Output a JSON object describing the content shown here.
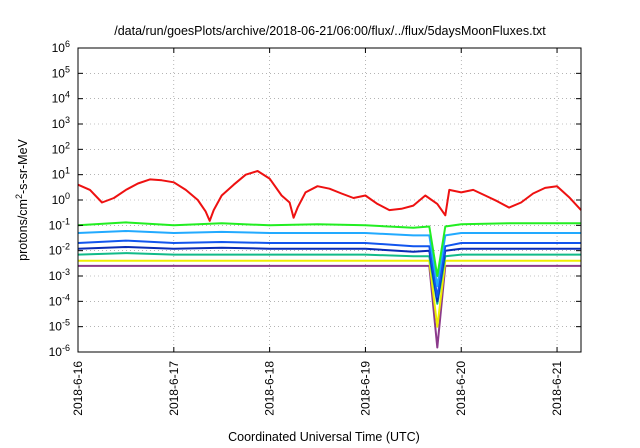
{
  "chart_data": {
    "type": "line",
    "title": "/data/run/goesPlots/archive/2018-06-21/06:00/flux/../flux/5daysMoonFluxes.txt",
    "xlabel": "Coordinated Universal Time (UTC)",
    "ylabel": {
      "base": "protons/cm",
      "sup": "2",
      "rest": "-s-sr-MeV"
    },
    "ylog": true,
    "ylim": [
      1e-06,
      1000000.0
    ],
    "yticks": [
      {
        "value": 1e-06,
        "base": "10",
        "exp": "-6"
      },
      {
        "value": 1e-05,
        "base": "10",
        "exp": "-5"
      },
      {
        "value": 0.0001,
        "base": "10",
        "exp": "-4"
      },
      {
        "value": 0.001,
        "base": "10",
        "exp": "-3"
      },
      {
        "value": 0.01,
        "base": "10",
        "exp": "-2"
      },
      {
        "value": 0.1,
        "base": "10",
        "exp": "-1"
      },
      {
        "value": 1,
        "base": "10",
        "exp": "0"
      },
      {
        "value": 10,
        "base": "10",
        "exp": "1"
      },
      {
        "value": 100,
        "base": "10",
        "exp": "2"
      },
      {
        "value": 1000,
        "base": "10",
        "exp": "3"
      },
      {
        "value": 10000,
        "base": "10",
        "exp": "4"
      },
      {
        "value": 100000,
        "base": "10",
        "exp": "5"
      },
      {
        "value": 1000000,
        "base": "10",
        "exp": "6"
      }
    ],
    "xlim": [
      "2018-06-16T00:00",
      "2018-06-21T06:00"
    ],
    "xticks": [
      {
        "value": "2018-06-16T00:00",
        "label": "2018-6-16"
      },
      {
        "value": "2018-06-17T00:00",
        "label": "2018-6-17"
      },
      {
        "value": "2018-06-18T00:00",
        "label": "2018-6-18"
      },
      {
        "value": "2018-06-19T00:00",
        "label": "2018-6-19"
      },
      {
        "value": "2018-06-20T00:00",
        "label": "2018-6-20"
      },
      {
        "value": "2018-06-21T00:00",
        "label": "2018-6-21"
      }
    ],
    "grid": true,
    "legend": "none",
    "series": [
      {
        "color": "#ee1111",
        "x": [
          "2018-06-16T00:00",
          "2018-06-16T03:00",
          "2018-06-16T06:00",
          "2018-06-16T09:00",
          "2018-06-16T12:00",
          "2018-06-16T15:00",
          "2018-06-16T18:00",
          "2018-06-16T21:00",
          "2018-06-17T00:00",
          "2018-06-17T03:00",
          "2018-06-17T06:00",
          "2018-06-17T08:00",
          "2018-06-17T09:00",
          "2018-06-17T10:00",
          "2018-06-17T12:00",
          "2018-06-17T15:00",
          "2018-06-17T18:00",
          "2018-06-17T21:00",
          "2018-06-18T00:00",
          "2018-06-18T03:00",
          "2018-06-18T05:00",
          "2018-06-18T06:00",
          "2018-06-18T07:00",
          "2018-06-18T09:00",
          "2018-06-18T12:00",
          "2018-06-18T15:00",
          "2018-06-18T18:00",
          "2018-06-18T21:00",
          "2018-06-19T00:00",
          "2018-06-19T03:00",
          "2018-06-19T06:00",
          "2018-06-19T09:00",
          "2018-06-19T12:00",
          "2018-06-19T15:00",
          "2018-06-19T18:00",
          "2018-06-19T20:00",
          "2018-06-19T21:00",
          "2018-06-20T00:00",
          "2018-06-20T03:00",
          "2018-06-20T06:00",
          "2018-06-20T09:00",
          "2018-06-20T12:00",
          "2018-06-20T15:00",
          "2018-06-20T18:00",
          "2018-06-20T21:00",
          "2018-06-21T00:00",
          "2018-06-21T03:00",
          "2018-06-21T06:00"
        ],
        "y": [
          4,
          2.5,
          0.8,
          1.2,
          2.5,
          4.5,
          6.5,
          6,
          5,
          2.5,
          1,
          0.35,
          0.15,
          0.4,
          1.5,
          4,
          10,
          14,
          7,
          1.5,
          0.8,
          0.2,
          0.5,
          2,
          3.5,
          2.8,
          1.8,
          1.2,
          1.5,
          0.7,
          0.4,
          0.45,
          0.6,
          1.5,
          0.7,
          0.25,
          2.5,
          2,
          2.5,
          1.5,
          0.9,
          0.5,
          0.8,
          1.8,
          3,
          3.5,
          1.3,
          0.4
        ]
      },
      {
        "color": "#22ee22",
        "x": [
          "2018-06-16T00:00",
          "2018-06-16T12:00",
          "2018-06-17T00:00",
          "2018-06-17T12:00",
          "2018-06-18T00:00",
          "2018-06-18T12:00",
          "2018-06-19T00:00",
          "2018-06-19T12:00",
          "2018-06-19T16:00",
          "2018-06-19T18:00",
          "2018-06-19T20:00",
          "2018-06-20T00:00",
          "2018-06-20T12:00",
          "2018-06-21T00:00",
          "2018-06-21T06:00"
        ],
        "y": [
          0.1,
          0.13,
          0.1,
          0.12,
          0.1,
          0.11,
          0.1,
          0.08,
          0.09,
          0.001,
          0.09,
          0.11,
          0.12,
          0.12,
          0.12
        ]
      },
      {
        "color": "#22aaff",
        "x": [
          "2018-06-16T00:00",
          "2018-06-16T12:00",
          "2018-06-17T00:00",
          "2018-06-17T12:00",
          "2018-06-18T00:00",
          "2018-06-18T12:00",
          "2018-06-19T00:00",
          "2018-06-19T12:00",
          "2018-06-19T16:00",
          "2018-06-19T18:00",
          "2018-06-19T20:00",
          "2018-06-20T00:00",
          "2018-06-20T12:00",
          "2018-06-21T00:00",
          "2018-06-21T06:00"
        ],
        "y": [
          0.05,
          0.06,
          0.05,
          0.055,
          0.05,
          0.05,
          0.05,
          0.04,
          0.04,
          0.0004,
          0.04,
          0.05,
          0.05,
          0.05,
          0.05
        ]
      },
      {
        "color": "#1155ee",
        "x": [
          "2018-06-16T00:00",
          "2018-06-16T12:00",
          "2018-06-17T00:00",
          "2018-06-17T12:00",
          "2018-06-18T00:00",
          "2018-06-18T12:00",
          "2018-06-19T00:00",
          "2018-06-19T12:00",
          "2018-06-19T16:00",
          "2018-06-19T18:00",
          "2018-06-19T20:00",
          "2018-06-20T00:00",
          "2018-06-20T12:00",
          "2018-06-21T00:00",
          "2018-06-21T06:00"
        ],
        "y": [
          0.02,
          0.025,
          0.02,
          0.022,
          0.02,
          0.02,
          0.02,
          0.015,
          0.015,
          0.00015,
          0.015,
          0.02,
          0.02,
          0.02,
          0.02
        ]
      },
      {
        "color": "#0a2bb5",
        "x": [
          "2018-06-16T00:00",
          "2018-06-16T12:00",
          "2018-06-17T00:00",
          "2018-06-17T12:00",
          "2018-06-18T00:00",
          "2018-06-18T12:00",
          "2018-06-19T00:00",
          "2018-06-19T12:00",
          "2018-06-19T16:00",
          "2018-06-19T18:00",
          "2018-06-19T20:00",
          "2018-06-20T00:00",
          "2018-06-20T12:00",
          "2018-06-21T00:00",
          "2018-06-21T06:00"
        ],
        "y": [
          0.012,
          0.014,
          0.012,
          0.013,
          0.012,
          0.012,
          0.012,
          0.009,
          0.01,
          0.0001,
          0.01,
          0.012,
          0.012,
          0.012,
          0.012
        ]
      },
      {
        "color": "#11bb88",
        "x": [
          "2018-06-16T00:00",
          "2018-06-16T12:00",
          "2018-06-17T00:00",
          "2018-06-17T12:00",
          "2018-06-18T00:00",
          "2018-06-18T12:00",
          "2018-06-19T00:00",
          "2018-06-19T12:00",
          "2018-06-19T16:00",
          "2018-06-19T18:00",
          "2018-06-19T20:00",
          "2018-06-20T00:00",
          "2018-06-20T12:00",
          "2018-06-21T00:00",
          "2018-06-21T06:00"
        ],
        "y": [
          0.007,
          0.008,
          0.007,
          0.007,
          0.007,
          0.007,
          0.007,
          0.006,
          0.006,
          8e-05,
          0.006,
          0.007,
          0.007,
          0.007,
          0.007
        ]
      },
      {
        "color": "#eeee00",
        "x": [
          "2018-06-16T00:00",
          "2018-06-16T12:00",
          "2018-06-17T00:00",
          "2018-06-17T12:00",
          "2018-06-18T00:00",
          "2018-06-18T12:00",
          "2018-06-19T00:00",
          "2018-06-19T12:00",
          "2018-06-19T16:00",
          "2018-06-19T18:00",
          "2018-06-19T20:00",
          "2018-06-20T00:00",
          "2018-06-20T12:00",
          "2018-06-21T00:00",
          "2018-06-21T06:00"
        ],
        "y": [
          0.004,
          0.004,
          0.004,
          0.004,
          0.004,
          0.004,
          0.004,
          0.004,
          0.004,
          1e-05,
          0.004,
          0.004,
          0.004,
          0.004,
          0.004
        ]
      },
      {
        "color": "#8b3a8b",
        "x": [
          "2018-06-16T00:00",
          "2018-06-16T12:00",
          "2018-06-17T00:00",
          "2018-06-17T12:00",
          "2018-06-18T00:00",
          "2018-06-18T12:00",
          "2018-06-19T00:00",
          "2018-06-19T12:00",
          "2018-06-19T16:00",
          "2018-06-19T18:00",
          "2018-06-19T20:00",
          "2018-06-20T00:00",
          "2018-06-20T12:00",
          "2018-06-21T00:00",
          "2018-06-21T06:00"
        ],
        "y": [
          0.0025,
          0.0025,
          0.0025,
          0.0025,
          0.0025,
          0.0025,
          0.0025,
          0.0025,
          0.0025,
          1.5e-06,
          0.0025,
          0.0025,
          0.0025,
          0.0025,
          0.0025
        ]
      }
    ]
  }
}
